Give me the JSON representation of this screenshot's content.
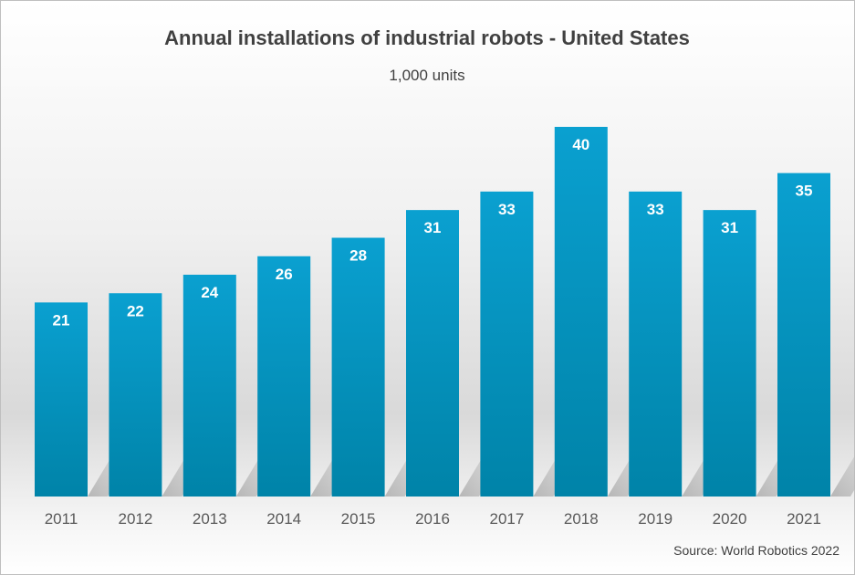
{
  "chart_data": {
    "type": "bar",
    "title": "Annual installations of industrial robots - United States",
    "subtitle": "1,000 units",
    "source": "Source: World Robotics 2022",
    "xlabel": "",
    "ylabel": "",
    "categories": [
      "2011",
      "2012",
      "2013",
      "2014",
      "2015",
      "2016",
      "2017",
      "2018",
      "2019",
      "2020",
      "2021"
    ],
    "values": [
      21,
      22,
      24,
      26,
      28,
      31,
      33,
      40,
      33,
      31,
      35
    ],
    "ylim": [
      0,
      40
    ],
    "grid": false,
    "data_labels": true,
    "colors": {
      "bar_top": "#0aa0d0",
      "bar_bottom": "#0083a8",
      "label": "#ffffff",
      "axis_text": "#595959",
      "title": "#404040"
    }
  }
}
